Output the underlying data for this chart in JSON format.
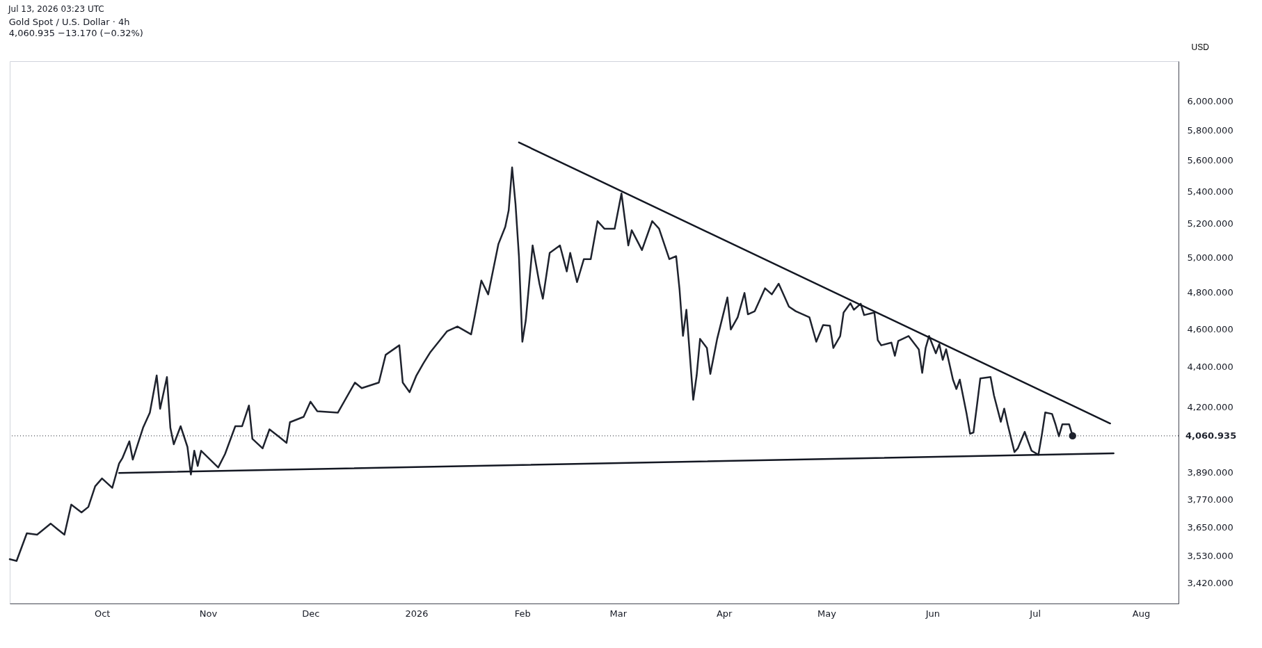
{
  "chart_data": {
    "type": "line",
    "title": "Gold Spot / U.S. Dollar · 4h",
    "subtitle": "4,060.935  −13.170 (−0.32%)",
    "ylabel": "USD",
    "annotations": [
      "Jul 13, 2026 03:23 UTC"
    ],
    "xlim": [
      "2025-09-04",
      "2026-08-12"
    ],
    "xticks": [
      {
        "value": "2025-10-01",
        "label": "Oct"
      },
      {
        "value": "2025-11-01",
        "label": "Nov"
      },
      {
        "value": "2025-12-01",
        "label": "Dec"
      },
      {
        "value": "2026-01-01",
        "label": "2026"
      },
      {
        "value": "2026-02-01",
        "label": "Feb"
      },
      {
        "value": "2026-03-01",
        "label": "Mar"
      },
      {
        "value": "2026-04-01",
        "label": "Apr"
      },
      {
        "value": "2026-05-01",
        "label": "May"
      },
      {
        "value": "2026-06-01",
        "label": "Jun"
      },
      {
        "value": "2026-07-01",
        "label": "Jul"
      },
      {
        "value": "2026-08-01",
        "label": "Aug"
      }
    ],
    "ylim": [
      3340,
      6285
    ],
    "log": true,
    "yticks": [
      {
        "value": 3420,
        "label": "3,420.000"
      },
      {
        "value": 3530,
        "label": "3,530.000"
      },
      {
        "value": 3650,
        "label": "3,650.000"
      },
      {
        "value": 3770,
        "label": "3,770.000"
      },
      {
        "value": 3890,
        "label": "3,890.000"
      },
      {
        "value": 4200,
        "label": "4,200.000"
      },
      {
        "value": 4400,
        "label": "4,400.000"
      },
      {
        "value": 4600,
        "label": "4,600.000"
      },
      {
        "value": 4800,
        "label": "4,800.000"
      },
      {
        "value": 5000,
        "label": "5,000.000"
      },
      {
        "value": 5200,
        "label": "5,200.000"
      },
      {
        "value": 5400,
        "label": "5,400.000"
      },
      {
        "value": 5600,
        "label": "5,600.000"
      },
      {
        "value": 5800,
        "label": "5,800.000"
      },
      {
        "value": 6000,
        "label": "6,000.000"
      }
    ],
    "ref_lines": [
      {
        "axis": "y",
        "value": 4060.935,
        "label": "4,060.935",
        "line_style": "dotted",
        "color": "#1e222d"
      }
    ],
    "series": [
      {
        "type": "line",
        "color": "#1e222d",
        "x": [
          "2025-09-04",
          "2025-09-06",
          "2025-09-09",
          "2025-09-12",
          "2025-09-16",
          "2025-09-18",
          "2025-09-20",
          "2025-09-22",
          "2025-09-25",
          "2025-09-27",
          "2025-09-29",
          "2025-10-01",
          "2025-10-04",
          "2025-10-06",
          "2025-10-07",
          "2025-10-09",
          "2025-10-10",
          "2025-10-13",
          "2025-10-15",
          "2025-10-17",
          "2025-10-18",
          "2025-10-20",
          "2025-10-21",
          "2025-10-22",
          "2025-10-24",
          "2025-10-26",
          "2025-10-27",
          "2025-10-28",
          "2025-10-29",
          "2025-10-30",
          "2025-11-04",
          "2025-11-06",
          "2025-11-09",
          "2025-11-11",
          "2025-11-13",
          "2025-11-14",
          "2025-11-17",
          "2025-11-19",
          "2025-11-22",
          "2025-11-24",
          "2025-11-25",
          "2025-11-29",
          "2025-12-01",
          "2025-12-03",
          "2025-12-09",
          "2025-12-14",
          "2025-12-16",
          "2025-12-21",
          "2025-12-23",
          "2025-12-27",
          "2025-12-28",
          "2025-12-30",
          "2026-01-01",
          "2026-01-03",
          "2026-01-05",
          "2026-01-10",
          "2026-01-13",
          "2026-01-17",
          "2026-01-18",
          "2026-01-20",
          "2026-01-22",
          "2026-01-25",
          "2026-01-27",
          "2026-01-28",
          "2026-01-29",
          "2026-01-30",
          "2026-01-31",
          "2026-02-01",
          "2026-02-02",
          "2026-02-04",
          "2026-02-06",
          "2026-02-07",
          "2026-02-09",
          "2026-02-12",
          "2026-02-14",
          "2026-02-15",
          "2026-02-17",
          "2026-02-19",
          "2026-02-21",
          "2026-02-23",
          "2026-02-25",
          "2026-02-28",
          "2026-03-02",
          "2026-03-04",
          "2026-03-05",
          "2026-03-08",
          "2026-03-11",
          "2026-03-13",
          "2026-03-16",
          "2026-03-18",
          "2026-03-19",
          "2026-03-20",
          "2026-03-21",
          "2026-03-23",
          "2026-03-24",
          "2026-03-25",
          "2026-03-27",
          "2026-03-28",
          "2026-03-30",
          "2026-04-01",
          "2026-04-02",
          "2026-04-03",
          "2026-04-05",
          "2026-04-07",
          "2026-04-08",
          "2026-04-10",
          "2026-04-13",
          "2026-04-15",
          "2026-04-17",
          "2026-04-20",
          "2026-04-22",
          "2026-04-26",
          "2026-04-28",
          "2026-04-30",
          "2026-05-02",
          "2026-05-03",
          "2026-05-05",
          "2026-05-06",
          "2026-05-08",
          "2026-05-09",
          "2026-05-11",
          "2026-05-12",
          "2026-05-15",
          "2026-05-16",
          "2026-05-17",
          "2026-05-20",
          "2026-05-21",
          "2026-05-22",
          "2026-05-25",
          "2026-05-28",
          "2026-05-29",
          "2026-05-30",
          "2026-05-31",
          "2026-06-02",
          "2026-06-03",
          "2026-06-04",
          "2026-06-05",
          "2026-06-07",
          "2026-06-08",
          "2026-06-09",
          "2026-06-11",
          "2026-06-12",
          "2026-06-13",
          "2026-06-14",
          "2026-06-15",
          "2026-06-18",
          "2026-06-19",
          "2026-06-21",
          "2026-06-22",
          "2026-06-23",
          "2026-06-25",
          "2026-06-26",
          "2026-06-28",
          "2026-06-29",
          "2026-06-30",
          "2026-07-02",
          "2026-07-03",
          "2026-07-04",
          "2026-07-06",
          "2026-07-07",
          "2026-07-08",
          "2026-07-09",
          "2026-07-11",
          "2026-07-12"
        ],
        "values": [
          3517,
          3510,
          3625,
          3619,
          3666,
          3642,
          3619,
          3748,
          3714,
          3738,
          3829,
          3864,
          3822,
          3932,
          3958,
          4035,
          3950,
          4099,
          4172,
          4357,
          4191,
          4349,
          4099,
          4021,
          4107,
          4009,
          3882,
          3991,
          3921,
          3991,
          3914,
          3976,
          4107,
          4107,
          4207,
          4047,
          4002,
          4092,
          4054,
          4028,
          4126,
          4152,
          4226,
          4179,
          4172,
          4321,
          4293,
          4321,
          4463,
          4513,
          4321,
          4273,
          4357,
          4418,
          4475,
          4588,
          4613,
          4571,
          4663,
          4867,
          4789,
          5079,
          5181,
          5282,
          5553,
          5320,
          5007,
          4532,
          4646,
          5070,
          4849,
          4765,
          5026,
          5070,
          4919,
          5026,
          4858,
          4990,
          4990,
          5216,
          5170,
          5170,
          5387,
          5070,
          5161,
          5043,
          5216,
          5170,
          4990,
          5007,
          4815,
          4563,
          4704,
          4235,
          4357,
          4547,
          4499,
          4365,
          4547,
          4696,
          4772,
          4597,
          4663,
          4797,
          4679,
          4696,
          4823,
          4789,
          4849,
          4721,
          4696,
          4663,
          4532,
          4621,
          4617,
          4499,
          4562,
          4689,
          4740,
          4704,
          4737,
          4675,
          4689,
          4540,
          4513,
          4527,
          4458,
          4536,
          4562,
          4492,
          4370,
          4499,
          4562,
          4471,
          4519,
          4437,
          4492,
          4336,
          4289,
          4336,
          4166,
          4071,
          4077,
          4205,
          4342,
          4349,
          4257,
          4128,
          4192,
          4116,
          3985,
          4003,
          4080,
          4034,
          3991,
          3972,
          4065,
          4173,
          4166,
          4116,
          4059,
          4116,
          4116,
          4060.935
        ]
      },
      {
        "type": "line",
        "color": "#131722",
        "x": [
          "2026-01-31",
          "2026-07-23"
        ],
        "values": [
          5717,
          4120
        ]
      },
      {
        "type": "line",
        "color": "#131722",
        "x": [
          "2025-10-06",
          "2026-07-24"
        ],
        "values": [
          3889,
          3979
        ]
      },
      {
        "type": "scatter",
        "color": "#1e222d",
        "marker": "circle",
        "x": [
          "2026-07-12"
        ],
        "values": [
          4060.935
        ]
      }
    ]
  }
}
